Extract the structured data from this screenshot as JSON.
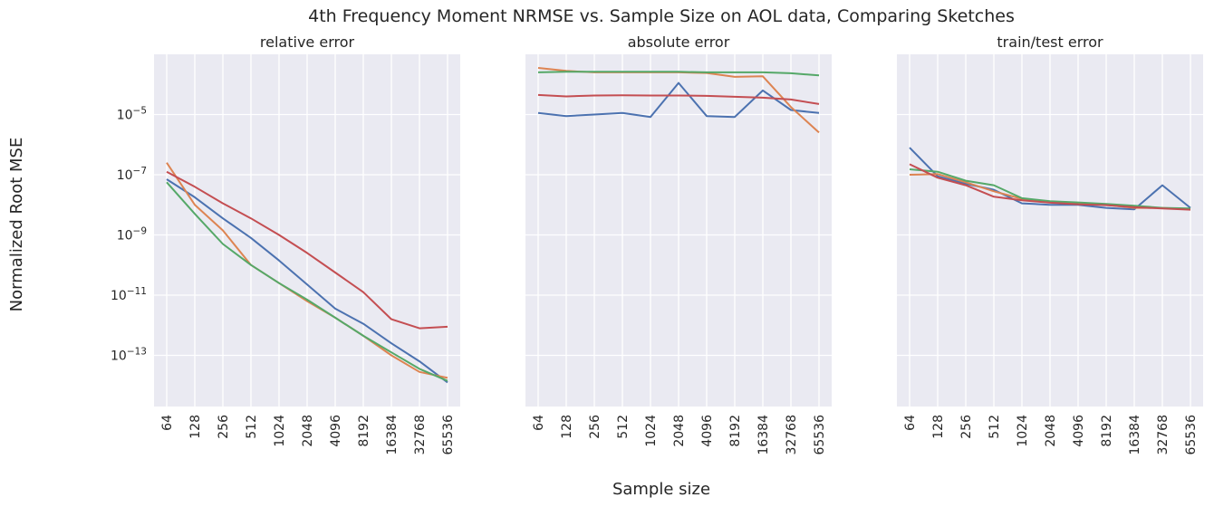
{
  "chart_data": {
    "type": "line",
    "title": "4th Frequency Moment NRMSE vs. Sample Size on AOL data, Comparing Sketches",
    "xlabel": "Sample size",
    "ylabel": "Normalized Root MSE",
    "yscale": "log",
    "ylim_log10": [
      -14.7,
      -3.0
    ],
    "yticks": [
      {
        "exp": -5,
        "label": "10",
        "sup": "−5"
      },
      {
        "exp": -7,
        "label": "10",
        "sup": "−7"
      },
      {
        "exp": -9,
        "label": "10",
        "sup": "−9"
      },
      {
        "exp": -11,
        "label": "10",
        "sup": "−11"
      },
      {
        "exp": -13,
        "label": "10",
        "sup": "−13"
      }
    ],
    "categories": [
      "64",
      "128",
      "256",
      "512",
      "1024",
      "2048",
      "4096",
      "8192",
      "16384",
      "32768",
      "65536"
    ],
    "colors": {
      "blue": "#4c72b0",
      "orange": "#dd8452",
      "green": "#55a868",
      "red": "#c44e52",
      "panel": "#eaeaf2",
      "grid": "#ffffff"
    },
    "panels": [
      {
        "subtitle": "relative error",
        "series": [
          {
            "color": "blue",
            "log10": [
              -7.15,
              -7.75,
              -8.45,
              -9.1,
              -9.85,
              -10.65,
              -11.45,
              -11.95,
              -12.6,
              -13.2,
              -13.9
            ]
          },
          {
            "color": "orange",
            "log10": [
              -6.6,
              -8.0,
              -8.85,
              -10.0,
              -10.6,
              -11.2,
              -11.75,
              -12.35,
              -13.0,
              -13.55,
              -13.75
            ]
          },
          {
            "color": "green",
            "log10": [
              -7.25,
              -8.3,
              -9.3,
              -10.0,
              -10.6,
              -11.15,
              -11.75,
              -12.35,
              -12.9,
              -13.45,
              -13.85
            ]
          },
          {
            "color": "red",
            "log10": [
              -6.9,
              -7.4,
              -7.95,
              -8.45,
              -9.0,
              -9.6,
              -10.25,
              -10.9,
              -11.8,
              -12.1,
              -12.05
            ]
          }
        ]
      },
      {
        "subtitle": "absolute error",
        "series": [
          {
            "color": "blue",
            "log10": [
              -4.95,
              -5.05,
              -5.0,
              -4.95,
              -5.08,
              -3.95,
              -5.05,
              -5.08,
              -4.2,
              -4.85,
              -4.95
            ]
          },
          {
            "color": "orange",
            "log10": [
              -3.45,
              -3.55,
              -3.6,
              -3.6,
              -3.6,
              -3.6,
              -3.62,
              -3.75,
              -3.73,
              -4.75,
              -5.6
            ]
          },
          {
            "color": "green",
            "log10": [
              -3.6,
              -3.58,
              -3.58,
              -3.58,
              -3.58,
              -3.58,
              -3.6,
              -3.6,
              -3.6,
              -3.63,
              -3.7
            ]
          },
          {
            "color": "red",
            "log10": [
              -4.35,
              -4.4,
              -4.37,
              -4.36,
              -4.37,
              -4.37,
              -4.38,
              -4.41,
              -4.44,
              -4.5,
              -4.65
            ]
          }
        ]
      },
      {
        "subtitle": "train/test error",
        "series": [
          {
            "color": "blue",
            "log10": [
              -6.1,
              -7.05,
              -7.3,
              -7.5,
              -7.95,
              -8.0,
              -8.0,
              -8.1,
              -8.15,
              -7.35,
              -8.1
            ]
          },
          {
            "color": "orange",
            "log10": [
              -7.0,
              -6.98,
              -7.25,
              -7.55,
              -7.8,
              -7.9,
              -7.95,
              -8.0,
              -8.1,
              -8.1,
              -8.15
            ]
          },
          {
            "color": "green",
            "log10": [
              -6.82,
              -6.9,
              -7.2,
              -7.35,
              -7.78,
              -7.88,
              -7.92,
              -7.97,
              -8.03,
              -8.1,
              -8.12
            ]
          },
          {
            "color": "red",
            "log10": [
              -6.65,
              -7.1,
              -7.35,
              -7.73,
              -7.85,
              -7.93,
              -7.98,
              -8.01,
              -8.08,
              -8.12,
              -8.16
            ]
          }
        ]
      }
    ]
  }
}
